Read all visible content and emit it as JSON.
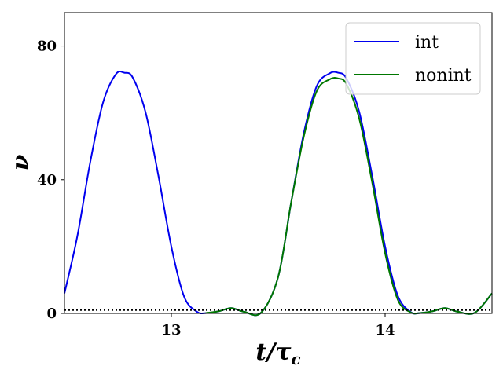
{
  "chart_data": {
    "type": "line",
    "xlabel": "t/τc",
    "ylabel": "ν",
    "xlim": [
      12.5,
      14.5
    ],
    "ylim": [
      0,
      90
    ],
    "xticks": [
      13,
      14
    ],
    "yticks": [
      0,
      40,
      80
    ],
    "xtick_labels": [
      "13",
      "14"
    ],
    "ytick_labels": [
      "0",
      "40",
      "80"
    ],
    "grid": false,
    "legend_position": "top-right",
    "reference_line": {
      "y": 1,
      "style": "dotted",
      "color": "#000000"
    },
    "series": [
      {
        "name": "int",
        "color": "#0000ee",
        "x": [
          12.5,
          12.56,
          12.62,
          12.68,
          12.74,
          12.78,
          12.82,
          12.88,
          12.94,
          13.0,
          13.06,
          13.12,
          13.16,
          13.22,
          13.28,
          13.34,
          13.42,
          13.5,
          13.56,
          13.62,
          13.68,
          13.74,
          13.78,
          13.82,
          13.88,
          13.94,
          14.0,
          14.06,
          14.12,
          14.16,
          14.22,
          14.28,
          14.34,
          14.42,
          14.5
        ],
        "y": [
          6,
          23,
          45,
          63,
          71.5,
          72,
          70.5,
          60,
          41,
          20,
          5,
          0.5,
          0.1,
          0.6,
          1.6,
          0.5,
          0.2,
          11,
          33,
          54,
          68,
          71.8,
          72,
          70.2,
          60,
          41,
          20,
          5.2,
          0.4,
          0.1,
          0.6,
          1.6,
          0.5,
          0.2,
          6
        ]
      },
      {
        "name": "nonint",
        "color": "#007700",
        "x": [
          13.16,
          13.22,
          13.28,
          13.34,
          13.42,
          13.5,
          13.56,
          13.62,
          13.68,
          13.74,
          13.78,
          13.82,
          13.88,
          13.94,
          14.0,
          14.06,
          14.12,
          14.16,
          14.22,
          14.28,
          14.34,
          14.42,
          14.5
        ],
        "y": [
          0.1,
          0.6,
          1.6,
          0.5,
          0.2,
          11,
          33,
          53,
          66.5,
          70,
          70.3,
          68.5,
          58,
          39,
          18,
          4,
          0.3,
          0.1,
          0.6,
          1.6,
          0.5,
          0.2,
          6
        ]
      }
    ]
  }
}
